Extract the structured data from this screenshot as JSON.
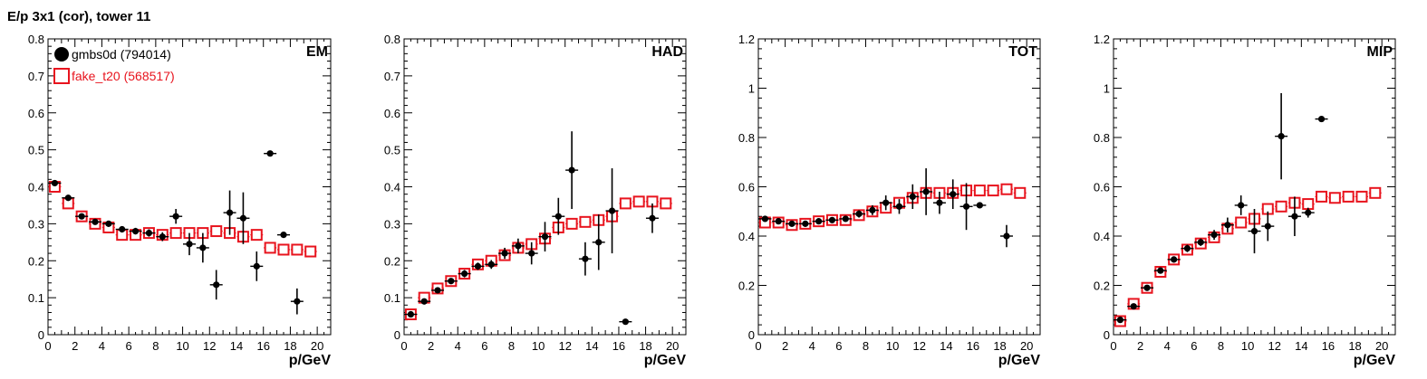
{
  "page_title": "E/p 3x1 (cor), tower 11",
  "colors": {
    "data": "#000000",
    "reference": "#e8141e",
    "axis": "#000000"
  },
  "legend": [
    {
      "label": "gmbs0d (794014)",
      "color": "#000000",
      "marker": "filled-circle"
    },
    {
      "label": "fake_t20 (568517)",
      "color": "#e8141e",
      "marker": "open-square"
    }
  ],
  "chart_data": [
    {
      "type": "scatter",
      "title": "EM",
      "xlabel": "p/GeV",
      "ylabel": "",
      "xlim": [
        0,
        21
      ],
      "ylim": [
        0,
        0.8
      ],
      "xticks": [
        0,
        2,
        4,
        6,
        8,
        10,
        12,
        14,
        16,
        18,
        20
      ],
      "yticks": [
        0,
        0.1,
        0.2,
        0.3,
        0.4,
        0.5,
        0.6,
        0.7,
        0.8
      ],
      "ytick_labels": [
        "0",
        "0.1",
        "0.2",
        "0.3",
        "0.4",
        "0.5",
        "0.6",
        "0.7",
        "0.8"
      ],
      "legend_position": "top-left",
      "series": [
        {
          "name": "gmbs0d (794014)",
          "marker": "filled-circle",
          "x": [
            0.5,
            1.5,
            2.5,
            3.5,
            4.5,
            5.5,
            6.5,
            7.5,
            8.5,
            9.5,
            10.5,
            11.5,
            12.5,
            13.5,
            14.5,
            15.5,
            16.5,
            17.5,
            18.5
          ],
          "y": [
            0.41,
            0.37,
            0.32,
            0.305,
            0.3,
            0.285,
            0.28,
            0.275,
            0.265,
            0.32,
            0.245,
            0.235,
            0.135,
            0.33,
            0.315,
            0.185,
            0.49,
            0.27,
            0.09
          ],
          "yerr": [
            0.005,
            0.006,
            0.007,
            0.007,
            0.008,
            0.008,
            0.009,
            0.01,
            0.012,
            0.02,
            0.03,
            0.04,
            0.04,
            0.06,
            0.07,
            0.04,
            0.005,
            0.005,
            0.035
          ]
        },
        {
          "name": "fake_t20 (568517)",
          "marker": "open-square",
          "x": [
            0.5,
            1.5,
            2.5,
            3.5,
            4.5,
            5.5,
            6.5,
            7.5,
            8.5,
            9.5,
            10.5,
            11.5,
            12.5,
            13.5,
            14.5,
            15.5,
            16.5,
            17.5,
            18.5,
            19.5
          ],
          "y": [
            0.4,
            0.355,
            0.32,
            0.3,
            0.29,
            0.27,
            0.27,
            0.275,
            0.27,
            0.275,
            0.275,
            0.275,
            0.28,
            0.275,
            0.265,
            0.27,
            0.235,
            0.23,
            0.23,
            0.225
          ],
          "yerr": []
        }
      ]
    },
    {
      "type": "scatter",
      "title": "HAD",
      "xlabel": "p/GeV",
      "ylabel": "",
      "xlim": [
        0,
        21
      ],
      "ylim": [
        0,
        0.8
      ],
      "xticks": [
        0,
        2,
        4,
        6,
        8,
        10,
        12,
        14,
        16,
        18,
        20
      ],
      "yticks": [
        0,
        0.1,
        0.2,
        0.3,
        0.4,
        0.5,
        0.6,
        0.7,
        0.8
      ],
      "ytick_labels": [
        "0",
        "0.1",
        "0.2",
        "0.3",
        "0.4",
        "0.5",
        "0.6",
        "0.7",
        "0.8"
      ],
      "series": [
        {
          "name": "gmbs0d (794014)",
          "marker": "filled-circle",
          "x": [
            0.5,
            1.5,
            2.5,
            3.5,
            4.5,
            5.5,
            6.5,
            7.5,
            8.5,
            9.5,
            10.5,
            11.5,
            12.5,
            13.5,
            14.5,
            15.5,
            16.5,
            18.5
          ],
          "y": [
            0.055,
            0.09,
            0.12,
            0.145,
            0.165,
            0.185,
            0.19,
            0.22,
            0.24,
            0.22,
            0.265,
            0.32,
            0.445,
            0.205,
            0.25,
            0.335,
            0.035,
            0.315
          ],
          "yerr": [
            0.005,
            0.006,
            0.007,
            0.008,
            0.01,
            0.01,
            0.012,
            0.015,
            0.02,
            0.03,
            0.04,
            0.05,
            0.105,
            0.045,
            0.075,
            0.115,
            0.004,
            0.04
          ]
        },
        {
          "name": "fake_t20 (568517)",
          "marker": "open-square",
          "x": [
            0.5,
            1.5,
            2.5,
            3.5,
            4.5,
            5.5,
            6.5,
            7.5,
            8.5,
            9.5,
            10.5,
            11.5,
            12.5,
            13.5,
            14.5,
            15.5,
            16.5,
            17.5,
            18.5,
            19.5
          ],
          "y": [
            0.055,
            0.1,
            0.125,
            0.145,
            0.165,
            0.19,
            0.2,
            0.215,
            0.235,
            0.245,
            0.26,
            0.29,
            0.3,
            0.305,
            0.31,
            0.32,
            0.355,
            0.36,
            0.36,
            0.355
          ],
          "yerr": []
        }
      ]
    },
    {
      "type": "scatter",
      "title": "TOT",
      "xlabel": "p/GeV",
      "ylabel": "",
      "xlim": [
        0,
        21
      ],
      "ylim": [
        0,
        1.2
      ],
      "xticks": [
        0,
        2,
        4,
        6,
        8,
        10,
        12,
        14,
        16,
        18,
        20
      ],
      "yticks": [
        0,
        0.2,
        0.4,
        0.6,
        0.8,
        1.0,
        1.2
      ],
      "ytick_labels": [
        "0",
        "0.2",
        "0.4",
        "0.6",
        "0.8",
        "1",
        "1.2"
      ],
      "series": [
        {
          "name": "gmbs0d (794014)",
          "marker": "filled-circle",
          "x": [
            0.5,
            1.5,
            2.5,
            3.5,
            4.5,
            5.5,
            6.5,
            7.5,
            8.5,
            9.5,
            10.5,
            11.5,
            12.5,
            13.5,
            14.5,
            15.5,
            16.5,
            18.5
          ],
          "y": [
            0.47,
            0.46,
            0.45,
            0.45,
            0.46,
            0.465,
            0.47,
            0.49,
            0.505,
            0.535,
            0.52,
            0.56,
            0.58,
            0.535,
            0.57,
            0.52,
            0.525,
            0.4
          ],
          "yerr": [
            0.005,
            0.006,
            0.007,
            0.008,
            0.009,
            0.01,
            0.012,
            0.015,
            0.02,
            0.03,
            0.03,
            0.05,
            0.095,
            0.045,
            0.06,
            0.095,
            0.005,
            0.045
          ]
        },
        {
          "name": "fake_t20 (568517)",
          "marker": "open-square",
          "x": [
            0.5,
            1.5,
            2.5,
            3.5,
            4.5,
            5.5,
            6.5,
            7.5,
            8.5,
            9.5,
            10.5,
            11.5,
            12.5,
            13.5,
            14.5,
            15.5,
            16.5,
            17.5,
            18.5,
            19.5
          ],
          "y": [
            0.455,
            0.455,
            0.445,
            0.45,
            0.46,
            0.465,
            0.465,
            0.485,
            0.5,
            0.515,
            0.535,
            0.555,
            0.575,
            0.575,
            0.575,
            0.585,
            0.585,
            0.585,
            0.59,
            0.575
          ],
          "yerr": []
        }
      ]
    },
    {
      "type": "scatter",
      "title": "MIP",
      "xlabel": "p/GeV",
      "ylabel": "",
      "xlim": [
        0,
        21
      ],
      "ylim": [
        0,
        1.2
      ],
      "xticks": [
        0,
        2,
        4,
        6,
        8,
        10,
        12,
        14,
        16,
        18,
        20
      ],
      "yticks": [
        0,
        0.2,
        0.4,
        0.6,
        0.8,
        1.0,
        1.2
      ],
      "ytick_labels": [
        "0",
        "0.2",
        "0.4",
        "0.6",
        "0.8",
        "1",
        "1.2"
      ],
      "series": [
        {
          "name": "gmbs0d (794014)",
          "marker": "filled-circle",
          "x": [
            0.5,
            1.5,
            2.5,
            3.5,
            4.5,
            5.5,
            6.5,
            7.5,
            8.5,
            9.5,
            10.5,
            11.5,
            12.5,
            13.5,
            14.5,
            15.5
          ],
          "y": [
            0.06,
            0.115,
            0.19,
            0.26,
            0.305,
            0.35,
            0.375,
            0.405,
            0.445,
            0.525,
            0.42,
            0.44,
            0.805,
            0.48,
            0.495,
            0.875
          ],
          "yerr": [
            0.006,
            0.008,
            0.01,
            0.012,
            0.012,
            0.015,
            0.015,
            0.02,
            0.03,
            0.04,
            0.09,
            0.06,
            0.175,
            0.08,
            0.02,
            0.006
          ]
        },
        {
          "name": "fake_t20 (568517)",
          "marker": "open-square",
          "x": [
            0.5,
            1.5,
            2.5,
            3.5,
            4.5,
            5.5,
            6.5,
            7.5,
            8.5,
            9.5,
            10.5,
            11.5,
            12.5,
            13.5,
            14.5,
            15.5,
            16.5,
            17.5,
            18.5,
            19.5
          ],
          "y": [
            0.055,
            0.125,
            0.19,
            0.255,
            0.305,
            0.345,
            0.37,
            0.395,
            0.43,
            0.455,
            0.47,
            0.51,
            0.52,
            0.535,
            0.53,
            0.56,
            0.555,
            0.56,
            0.56,
            0.575
          ],
          "yerr": []
        }
      ]
    }
  ]
}
